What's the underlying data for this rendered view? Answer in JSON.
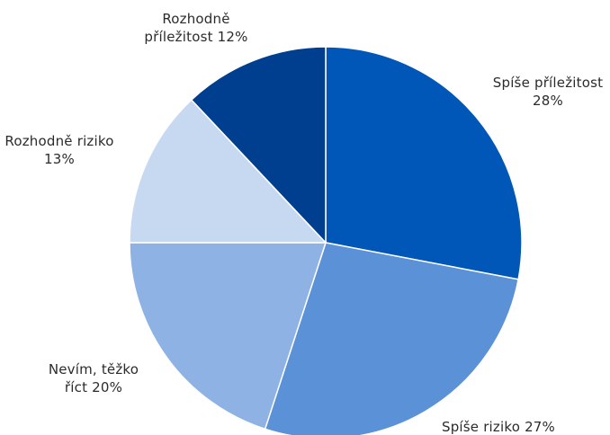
{
  "chart_data": {
    "type": "pie",
    "title": "",
    "slices": [
      {
        "label": "Spíše příležitost",
        "value": 28,
        "display": [
          "Spíše příležitost",
          "28%"
        ],
        "color": "#0057b8"
      },
      {
        "label": "Spíše riziko",
        "value": 27,
        "display": [
          "Spíše riziko 27%"
        ],
        "color": "#5b91d6"
      },
      {
        "label": "Nevím, těžko říct",
        "value": 20,
        "display": [
          "Nevím, těžko",
          "říct 20%"
        ],
        "color": "#8db2e3"
      },
      {
        "label": "Rozhodně riziko",
        "value": 13,
        "display": [
          "Rozhodně riziko",
          "13%"
        ],
        "color": "#c7d9f1"
      },
      {
        "label": "Rozhodně příležitost",
        "value": 12,
        "display": [
          "Rozhodně",
          "příležitost 12%"
        ],
        "color": "#003f8f"
      }
    ],
    "start_angle_deg": 0,
    "direction": "clockwise",
    "legend": "none",
    "grid": false
  }
}
